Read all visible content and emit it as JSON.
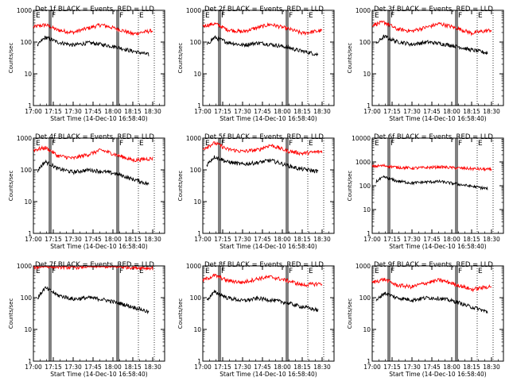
{
  "figure": {
    "xlabel": "Start Time (14-Dec-10 16:58:40)",
    "ylabel": "Counts/sec",
    "x_ticks": [
      "17:00",
      "17:15",
      "17:30",
      "17:45",
      "18:00",
      "18:15",
      "18:30"
    ],
    "y_ticks": [
      "1",
      "10",
      "100",
      "1000"
    ],
    "event_markers": [
      "E",
      "F"
    ],
    "colors": {
      "events": "#000000",
      "lld": "#ff0000",
      "axes": "#000000",
      "background": "#ffffff"
    }
  },
  "chart_data": [
    {
      "type": "line",
      "title": "Det 1f BLACK = Events, RED = LLD",
      "ylim": [
        1,
        1000
      ],
      "log_y": true,
      "series": [
        {
          "name": "BLACK = Events",
          "x": [
            17.05,
            17.15,
            17.3,
            17.5,
            17.7,
            17.85,
            18.05,
            18.2,
            18.45
          ],
          "values": [
            75,
            140,
            100,
            80,
            95,
            85,
            70,
            55,
            40
          ]
        },
        {
          "name": "RED = LLD",
          "x": [
            17.0,
            17.15,
            17.3,
            17.5,
            17.7,
            17.85,
            18.05,
            18.25,
            18.5
          ],
          "values": [
            300,
            350,
            240,
            200,
            280,
            350,
            260,
            180,
            230
          ]
        }
      ]
    },
    {
      "type": "line",
      "title": "Det 2f BLACK = Events, RED = LLD",
      "ylim": [
        1,
        1000
      ],
      "log_y": true,
      "series": [
        {
          "name": "BLACK = Events",
          "x": [
            17.05,
            17.15,
            17.3,
            17.5,
            17.7,
            17.85,
            18.05,
            18.2,
            18.45
          ],
          "values": [
            80,
            140,
            100,
            80,
            95,
            85,
            70,
            55,
            40
          ]
        },
        {
          "name": "RED = LLD",
          "x": [
            17.0,
            17.15,
            17.3,
            17.5,
            17.7,
            17.85,
            18.05,
            18.25,
            18.5
          ],
          "values": [
            320,
            380,
            250,
            210,
            290,
            360,
            270,
            190,
            230
          ]
        }
      ]
    },
    {
      "type": "line",
      "title": "Det 3f BLACK = Events, RED = LLD",
      "ylim": [
        1,
        1000
      ],
      "log_y": true,
      "series": [
        {
          "name": "BLACK = Events",
          "x": [
            17.05,
            17.15,
            17.3,
            17.5,
            17.7,
            17.85,
            18.05,
            18.2,
            18.45
          ],
          "values": [
            85,
            150,
            105,
            85,
            100,
            90,
            75,
            60,
            45
          ]
        },
        {
          "name": "RED = LLD",
          "x": [
            17.0,
            17.15,
            17.3,
            17.5,
            17.7,
            17.85,
            18.05,
            18.25,
            18.5
          ],
          "values": [
            350,
            420,
            260,
            220,
            300,
            380,
            280,
            190,
            240
          ]
        }
      ]
    },
    {
      "type": "line",
      "title": "Det 4f BLACK = Events, RED = LLD",
      "ylim": [
        1,
        1000
      ],
      "log_y": true,
      "series": [
        {
          "name": "BLACK = Events",
          "x": [
            17.05,
            17.15,
            17.3,
            17.5,
            17.7,
            17.85,
            18.05,
            18.2,
            18.45
          ],
          "values": [
            90,
            180,
            110,
            85,
            100,
            90,
            75,
            55,
            35
          ]
        },
        {
          "name": "RED = LLD",
          "x": [
            17.0,
            17.15,
            17.3,
            17.5,
            17.7,
            17.85,
            18.05,
            18.25,
            18.5
          ],
          "values": [
            420,
            500,
            280,
            230,
            310,
            420,
            290,
            200,
            230
          ]
        }
      ]
    },
    {
      "type": "line",
      "title": "Det 5f BLACK = Events, RED = LLD",
      "ylim": [
        1,
        1000
      ],
      "log_y": true,
      "series": [
        {
          "name": "BLACK = Events",
          "x": [
            17.05,
            17.15,
            17.3,
            17.5,
            17.7,
            17.85,
            18.05,
            18.2,
            18.45
          ],
          "values": [
            140,
            260,
            180,
            150,
            170,
            200,
            140,
            110,
            90
          ]
        },
        {
          "name": "RED = LLD",
          "x": [
            17.0,
            17.15,
            17.3,
            17.5,
            17.7,
            17.85,
            18.05,
            18.25,
            18.5
          ],
          "values": [
            450,
            700,
            450,
            380,
            430,
            600,
            400,
            330,
            380
          ]
        }
      ]
    },
    {
      "type": "line",
      "title": "Det 6f BLACK = Events, RED = LLD",
      "ylim": [
        1,
        10000
      ],
      "log_y": true,
      "series": [
        {
          "name": "BLACK = Events",
          "x": [
            17.05,
            17.15,
            17.3,
            17.5,
            17.7,
            17.85,
            18.05,
            18.2,
            18.45
          ],
          "values": [
            150,
            230,
            160,
            130,
            145,
            150,
            120,
            100,
            75
          ]
        },
        {
          "name": "RED = LLD",
          "x": [
            17.0,
            17.15,
            17.3,
            17.5,
            17.7,
            17.85,
            18.05,
            18.25,
            18.5
          ],
          "values": [
            650,
            700,
            600,
            550,
            580,
            620,
            560,
            520,
            480
          ]
        }
      ]
    },
    {
      "type": "line",
      "title": "Det 7f BLACK = Events, RED = LLD",
      "ylim": [
        1,
        1000
      ],
      "log_y": true,
      "series": [
        {
          "name": "BLACK = Events",
          "x": [
            17.05,
            17.15,
            17.3,
            17.5,
            17.7,
            17.85,
            18.05,
            18.2,
            18.45
          ],
          "values": [
            90,
            200,
            120,
            90,
            100,
            90,
            70,
            55,
            35
          ]
        },
        {
          "name": "RED = LLD",
          "x": [
            17.0,
            17.15,
            17.3,
            17.5,
            17.7,
            17.85,
            18.05,
            18.25,
            18.5
          ],
          "values": [
            900,
            1000,
            950,
            900,
            980,
            1000,
            950,
            900,
            850
          ]
        }
      ]
    },
    {
      "type": "line",
      "title": "Det 8f BLACK = Events, RED = LLD",
      "ylim": [
        1,
        1000
      ],
      "log_y": true,
      "series": [
        {
          "name": "BLACK = Events",
          "x": [
            17.05,
            17.15,
            17.3,
            17.5,
            17.7,
            17.85,
            18.05,
            18.2,
            18.45
          ],
          "values": [
            80,
            150,
            100,
            80,
            95,
            85,
            70,
            55,
            40
          ]
        },
        {
          "name": "RED = LLD",
          "x": [
            17.0,
            17.15,
            17.3,
            17.5,
            17.7,
            17.85,
            18.05,
            18.25,
            18.5
          ],
          "values": [
            350,
            500,
            350,
            300,
            400,
            450,
            350,
            250,
            280
          ]
        }
      ]
    },
    {
      "type": "line",
      "title": "Det 9f BLACK = Events, RED = LLD",
      "ylim": [
        1,
        1000
      ],
      "log_y": true,
      "series": [
        {
          "name": "BLACK = Events",
          "x": [
            17.05,
            17.15,
            17.3,
            17.5,
            17.7,
            17.85,
            18.05,
            18.2,
            18.45
          ],
          "values": [
            75,
            140,
            100,
            85,
            100,
            95,
            75,
            55,
            35
          ]
        },
        {
          "name": "RED = LLD",
          "x": [
            17.0,
            17.15,
            17.3,
            17.5,
            17.7,
            17.85,
            18.05,
            18.25,
            18.5
          ],
          "values": [
            300,
            380,
            250,
            220,
            300,
            360,
            260,
            180,
            230
          ]
        }
      ]
    }
  ]
}
